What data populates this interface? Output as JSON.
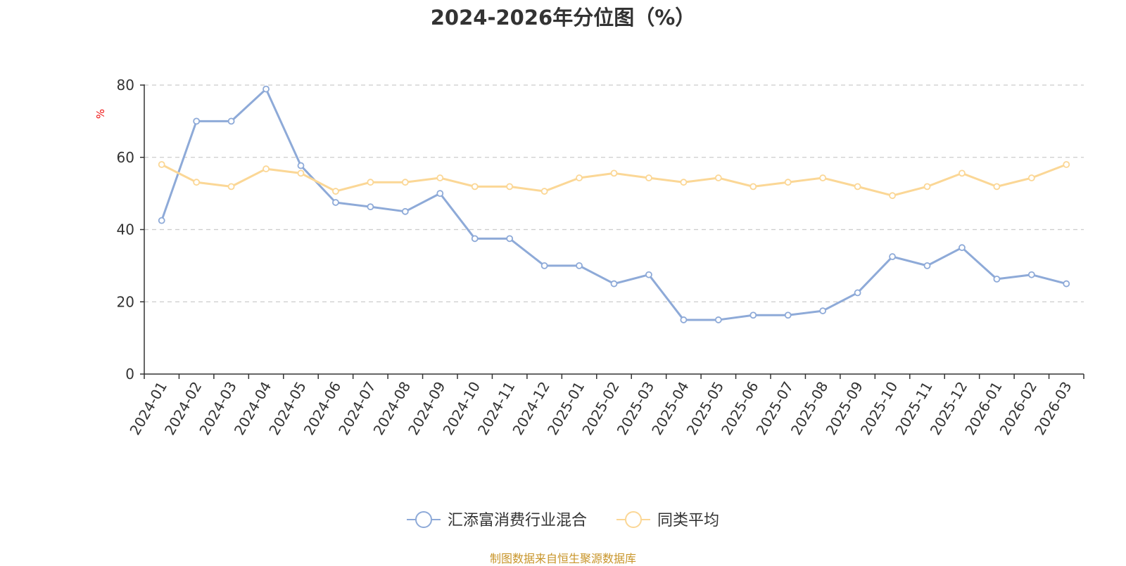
{
  "chart_data": {
    "type": "line",
    "title": "2024-2026年分位图（%）",
    "ylabel": "%",
    "xlabel": "",
    "ylim": [
      0,
      80
    ],
    "yticks": [
      0,
      20,
      40,
      60,
      80
    ],
    "grid": true,
    "legend_position": "bottom-center",
    "categories": [
      "2024-01",
      "2024-02",
      "2024-03",
      "2024-04",
      "2024-05",
      "2024-06",
      "2024-07",
      "2024-08",
      "2024-09",
      "2024-10",
      "2024-11",
      "2024-12",
      "2025-01",
      "2025-02",
      "2025-03",
      "2025-04",
      "2025-05",
      "2025-06",
      "2025-07",
      "2025-08",
      "2025-09",
      "2025-10",
      "2025-11",
      "2025-12",
      "2026-01",
      "2026-02",
      "2026-03"
    ],
    "series": [
      {
        "name": "汇添富消费行业混合",
        "color": "#8eaad8",
        "values": [
          42.5,
          70,
          70,
          78.9,
          57.7,
          47.5,
          46.3,
          45,
          50,
          37.5,
          37.5,
          30,
          30,
          25,
          27.5,
          15,
          15,
          16.3,
          16.3,
          17.5,
          22.5,
          32.5,
          30,
          35,
          26.3,
          27.5,
          25
        ]
      },
      {
        "name": "同类平均",
        "color": "#fbd796",
        "values": [
          58,
          53.1,
          51.9,
          56.8,
          55.6,
          50.6,
          53.1,
          53.1,
          54.3,
          51.9,
          51.9,
          50.6,
          54.3,
          55.6,
          54.3,
          53.1,
          54.3,
          51.9,
          53.1,
          54.3,
          51.9,
          49.4,
          51.9,
          55.6,
          51.9,
          54.3,
          58
        ]
      }
    ]
  },
  "source_note": "制图数据来自恒生聚源数据库"
}
